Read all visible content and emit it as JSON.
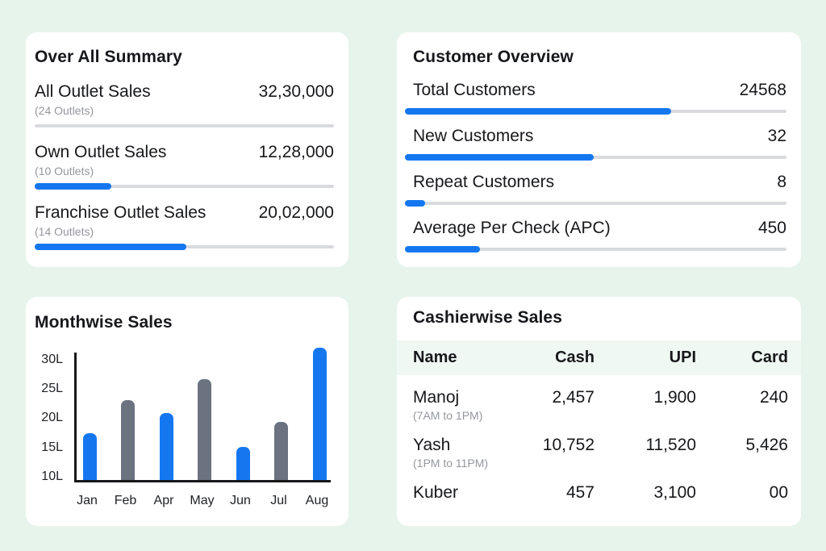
{
  "colors": {
    "page_bg": "#e7f4ec",
    "card_bg": "#ffffff",
    "accent_blue": "#1577f0",
    "bar_gray": "#6b7280",
    "track_gray": "#d8dade",
    "table_header_bg": "#f0f8f3"
  },
  "overall_summary": {
    "title": "Over All Summary",
    "rows": [
      {
        "label": "All Outlet Sales",
        "sublabel": "(24 Outlets)",
        "value": "32,30,000",
        "progress_pct": 0
      },
      {
        "label": "Own Outlet Sales",
        "sublabel": "(10 Outlets)",
        "value": "12,28,000",
        "progress_pct": 25.6
      },
      {
        "label": "Franchise Outlet Sales",
        "sublabel": "(14 Outlets)",
        "value": "20,02,000",
        "progress_pct": 50.8
      }
    ]
  },
  "customer_overview": {
    "title": "Customer Overview",
    "rows": [
      {
        "label": "Total Customers",
        "value": "24568",
        "progress_pct": 69.8
      },
      {
        "label": "New Customers",
        "value": "32",
        "progress_pct": 49.5
      },
      {
        "label": "Repeat Customers",
        "value": "8",
        "progress_pct": 5.3
      },
      {
        "label": "Average Per Check (APC)",
        "value": "450",
        "progress_pct": 19.7
      }
    ]
  },
  "chart_data": {
    "type": "bar",
    "title": "Monthwise Sales",
    "categories": [
      "Jan",
      "Feb",
      "Apr",
      "May",
      "Jun",
      "Jul",
      "Aug"
    ],
    "values": [
      17,
      22.7,
      20.4,
      26.3,
      14.6,
      19,
      31.6
    ],
    "unit": "L (lakh)",
    "xlabel": "",
    "ylabel": "",
    "yticks": [
      10,
      15,
      20,
      25,
      30
    ],
    "ytick_labels": [
      "10L",
      "15L",
      "20L",
      "25L",
      "30L"
    ],
    "ylim": [
      9,
      31.5
    ],
    "grid": false,
    "legend": false,
    "bar_color_pattern": [
      "#1577f0",
      "#6b7280"
    ],
    "bar_color_note": "bars alternate blue/gray starting with blue"
  },
  "cashierwise_sales": {
    "title": "Cashierwise Sales",
    "columns": [
      "Name",
      "Cash",
      "UPI",
      "Card"
    ],
    "rows": [
      {
        "name": "Manoj",
        "shift": "(7AM to 1PM)",
        "cash": "2,457",
        "upi": "1,900",
        "card": "240"
      },
      {
        "name": "Yash",
        "shift": "(1PM to 11PM)",
        "cash": "10,752",
        "upi": "11,520",
        "card": "5,426"
      },
      {
        "name": "Kuber",
        "cash": "457",
        "upi": "3,100",
        "card": "00"
      }
    ]
  }
}
